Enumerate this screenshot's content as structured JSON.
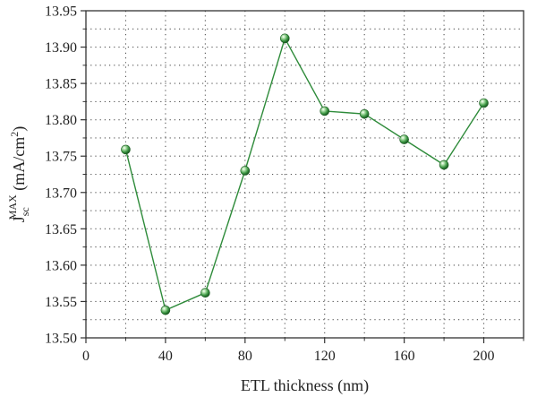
{
  "chart_data": {
    "type": "line",
    "xlabel": "ETL thickness (nm)",
    "ylabel": {
      "base": "J",
      "subscript": "sc",
      "superscript": "MAX",
      "unit_open": " (mA/cm",
      "unit_exp": "2",
      "unit_close": ")"
    },
    "xlim": [
      0,
      220
    ],
    "ylim": [
      13.5,
      13.95
    ],
    "xticks": [
      0,
      40,
      80,
      120,
      160,
      200
    ],
    "xtick_labels": [
      "0",
      "40",
      "80",
      "120",
      "160",
      "200"
    ],
    "yticks": [
      13.5,
      13.55,
      13.6,
      13.65,
      13.7,
      13.75,
      13.8,
      13.85,
      13.9,
      13.95
    ],
    "ytick_labels": [
      "13.50",
      "13.55",
      "13.60",
      "13.65",
      "13.70",
      "13.75",
      "13.80",
      "13.85",
      "13.90",
      "13.95"
    ],
    "grid": true,
    "series": [
      {
        "color": "#2e8b3a",
        "marker": "sphere",
        "x": [
          20,
          40,
          60,
          80,
          100,
          120,
          140,
          160,
          180,
          200
        ],
        "y": [
          13.759,
          13.538,
          13.562,
          13.73,
          13.912,
          13.812,
          13.808,
          13.773,
          13.738,
          13.823
        ]
      }
    ]
  }
}
